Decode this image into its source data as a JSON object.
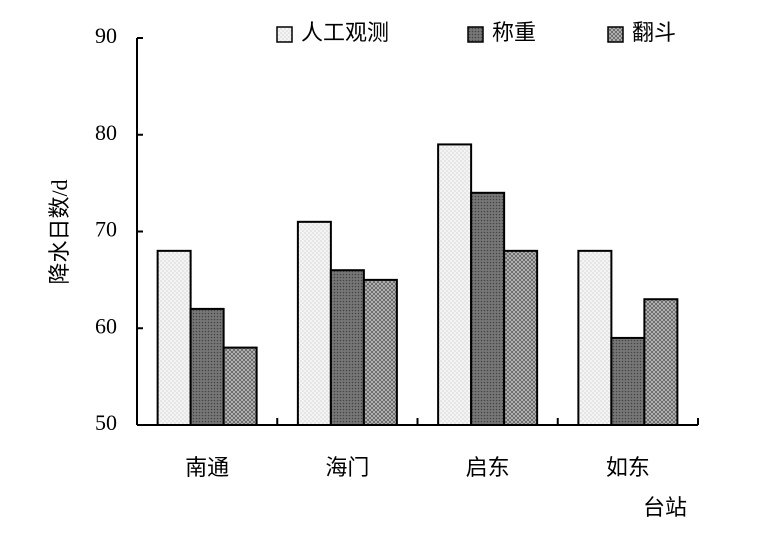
{
  "chart_data": {
    "type": "bar",
    "x_label": "台站",
    "y_label": "降水日数/d",
    "categories": [
      "南通",
      "海门",
      "启东",
      "如东"
    ],
    "series": [
      {
        "name": "人工观测",
        "color": "#f4f4f4",
        "values": [
          68,
          71,
          79,
          68
        ]
      },
      {
        "name": "称重",
        "color": "#777777",
        "values": [
          62,
          66,
          74,
          59
        ]
      },
      {
        "name": "翻斗",
        "color": "#bbbbbb",
        "values": [
          58,
          65,
          68,
          63
        ]
      }
    ],
    "ylim": [
      50,
      90
    ],
    "yticks": [
      50,
      60,
      70,
      80,
      90
    ],
    "grid": false,
    "legend": "top"
  }
}
